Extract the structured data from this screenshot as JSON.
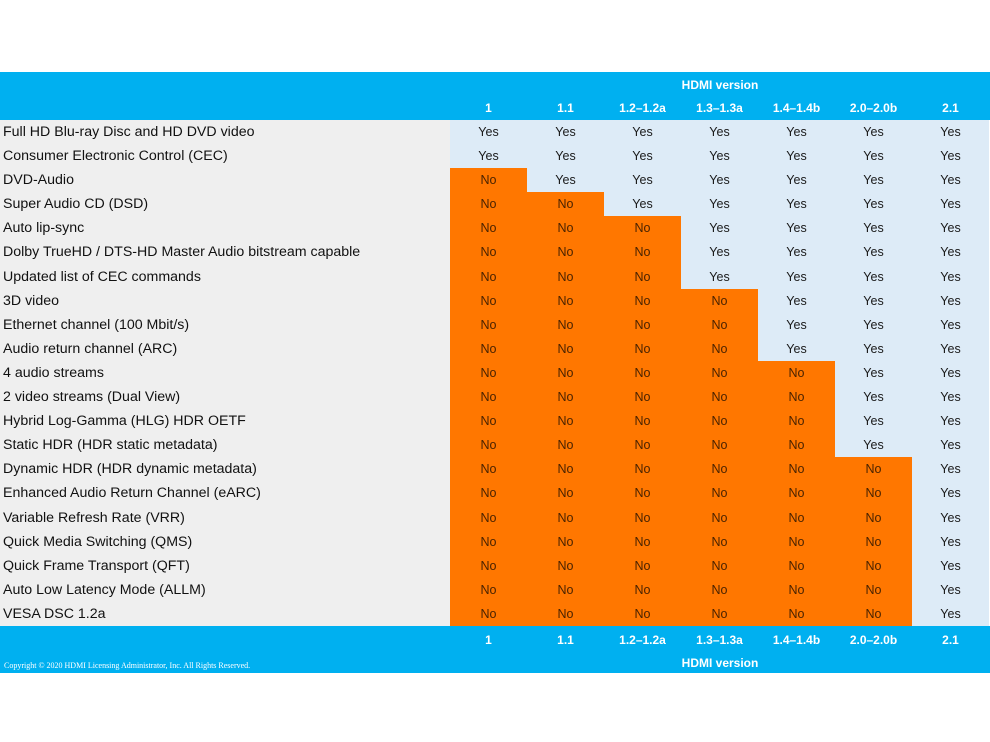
{
  "header": {
    "title": "HDMI version"
  },
  "footer": {
    "title": "HDMI version",
    "copyright": "Copyright © 2020 HDMI Licensing Administrator, Inc. All Rights Reserved."
  },
  "versions": [
    "1",
    "1.1",
    "1.2–1.2a",
    "1.3–1.3a",
    "1.4–1.4b",
    "2.0–2.0b",
    "2.1"
  ],
  "colors": {
    "band": "#00b0f0",
    "no": "#ff7700",
    "yes": "#ddebf7",
    "label_bg": "#efefef"
  },
  "rows": [
    {
      "feature": "Full HD Blu-ray Disc and HD DVD video",
      "support": [
        "Yes",
        "Yes",
        "Yes",
        "Yes",
        "Yes",
        "Yes",
        "Yes"
      ]
    },
    {
      "feature": "Consumer Electronic Control (CEC)",
      "support": [
        "Yes",
        "Yes",
        "Yes",
        "Yes",
        "Yes",
        "Yes",
        "Yes"
      ]
    },
    {
      "feature": "DVD-Audio",
      "support": [
        "No",
        "Yes",
        "Yes",
        "Yes",
        "Yes",
        "Yes",
        "Yes"
      ]
    },
    {
      "feature": "Super Audio CD (DSD)",
      "support": [
        "No",
        "No",
        "Yes",
        "Yes",
        "Yes",
        "Yes",
        "Yes"
      ]
    },
    {
      "feature": "Auto lip-sync",
      "support": [
        "No",
        "No",
        "No",
        "Yes",
        "Yes",
        "Yes",
        "Yes"
      ]
    },
    {
      "feature": "Dolby TrueHD / DTS-HD Master Audio bitstream capable",
      "support": [
        "No",
        "No",
        "No",
        "Yes",
        "Yes",
        "Yes",
        "Yes"
      ]
    },
    {
      "feature": "Updated list of CEC commands",
      "support": [
        "No",
        "No",
        "No",
        "Yes",
        "Yes",
        "Yes",
        "Yes"
      ]
    },
    {
      "feature": "3D video",
      "support": [
        "No",
        "No",
        "No",
        "No",
        "Yes",
        "Yes",
        "Yes"
      ]
    },
    {
      "feature": "Ethernet channel (100 Mbit/s)",
      "support": [
        "No",
        "No",
        "No",
        "No",
        "Yes",
        "Yes",
        "Yes"
      ]
    },
    {
      "feature": "Audio return channel (ARC)",
      "support": [
        "No",
        "No",
        "No",
        "No",
        "Yes",
        "Yes",
        "Yes"
      ]
    },
    {
      "feature": "4 audio streams",
      "support": [
        "No",
        "No",
        "No",
        "No",
        "No",
        "Yes",
        "Yes"
      ]
    },
    {
      "feature": "2 video streams (Dual View)",
      "support": [
        "No",
        "No",
        "No",
        "No",
        "No",
        "Yes",
        "Yes"
      ]
    },
    {
      "feature": "Hybrid Log-Gamma (HLG) HDR OETF",
      "support": [
        "No",
        "No",
        "No",
        "No",
        "No",
        "Yes",
        "Yes"
      ]
    },
    {
      "feature": "Static HDR (HDR static metadata)",
      "support": [
        "No",
        "No",
        "No",
        "No",
        "No",
        "Yes",
        "Yes"
      ]
    },
    {
      "feature": "Dynamic HDR (HDR dynamic metadata)",
      "support": [
        "No",
        "No",
        "No",
        "No",
        "No",
        "No",
        "Yes"
      ]
    },
    {
      "feature": "Enhanced Audio Return Channel (eARC)",
      "support": [
        "No",
        "No",
        "No",
        "No",
        "No",
        "No",
        "Yes"
      ]
    },
    {
      "feature": "Variable Refresh Rate (VRR)",
      "support": [
        "No",
        "No",
        "No",
        "No",
        "No",
        "No",
        "Yes"
      ]
    },
    {
      "feature": "Quick Media Switching (QMS)",
      "support": [
        "No",
        "No",
        "No",
        "No",
        "No",
        "No",
        "Yes"
      ]
    },
    {
      "feature": "Quick Frame Transport (QFT)",
      "support": [
        "No",
        "No",
        "No",
        "No",
        "No",
        "No",
        "Yes"
      ]
    },
    {
      "feature": "Auto Low Latency Mode (ALLM)",
      "support": [
        "No",
        "No",
        "No",
        "No",
        "No",
        "No",
        "Yes"
      ]
    },
    {
      "feature": "VESA DSC 1.2a",
      "support": [
        "No",
        "No",
        "No",
        "No",
        "No",
        "No",
        "Yes"
      ]
    }
  ]
}
